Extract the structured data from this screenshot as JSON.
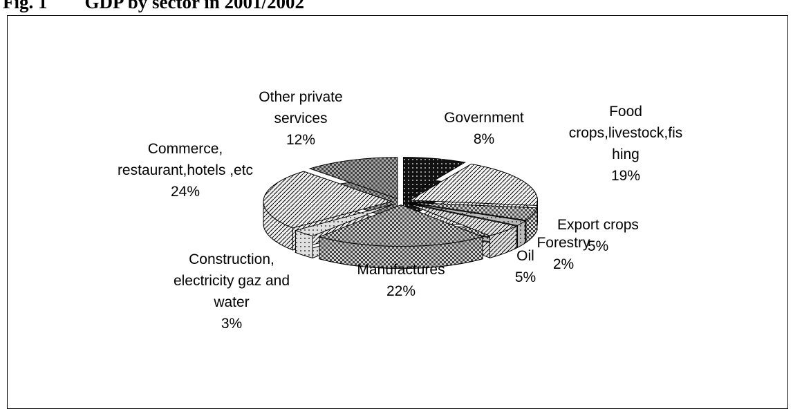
{
  "chart_data": {
    "type": "pie",
    "title": "Fig. 1        GDP by sector in 2001/2002",
    "categories": [
      "Government",
      "Food crops,livestock,fishing",
      "Export crops",
      "Forestry",
      "Oil",
      "Manufactures",
      "Construction, electricity gaz and water",
      "Commerce, restaurant,hotels ,etc",
      "Other private services"
    ],
    "values": [
      8,
      19,
      5,
      2,
      5,
      22,
      3,
      24,
      12
    ],
    "value_labels": [
      "8%",
      "19%",
      "5%",
      "2%",
      "5%",
      "22%",
      "3%",
      "24%",
      "12%"
    ],
    "colors": [
      "#111111",
      "#f4f4f4",
      "#d8d8d8",
      "#bbbbbb",
      "#e6e6e6",
      "#cfcfcf",
      "#e0e0e0",
      "#f0f0f0",
      "#a8a8a8"
    ]
  }
}
